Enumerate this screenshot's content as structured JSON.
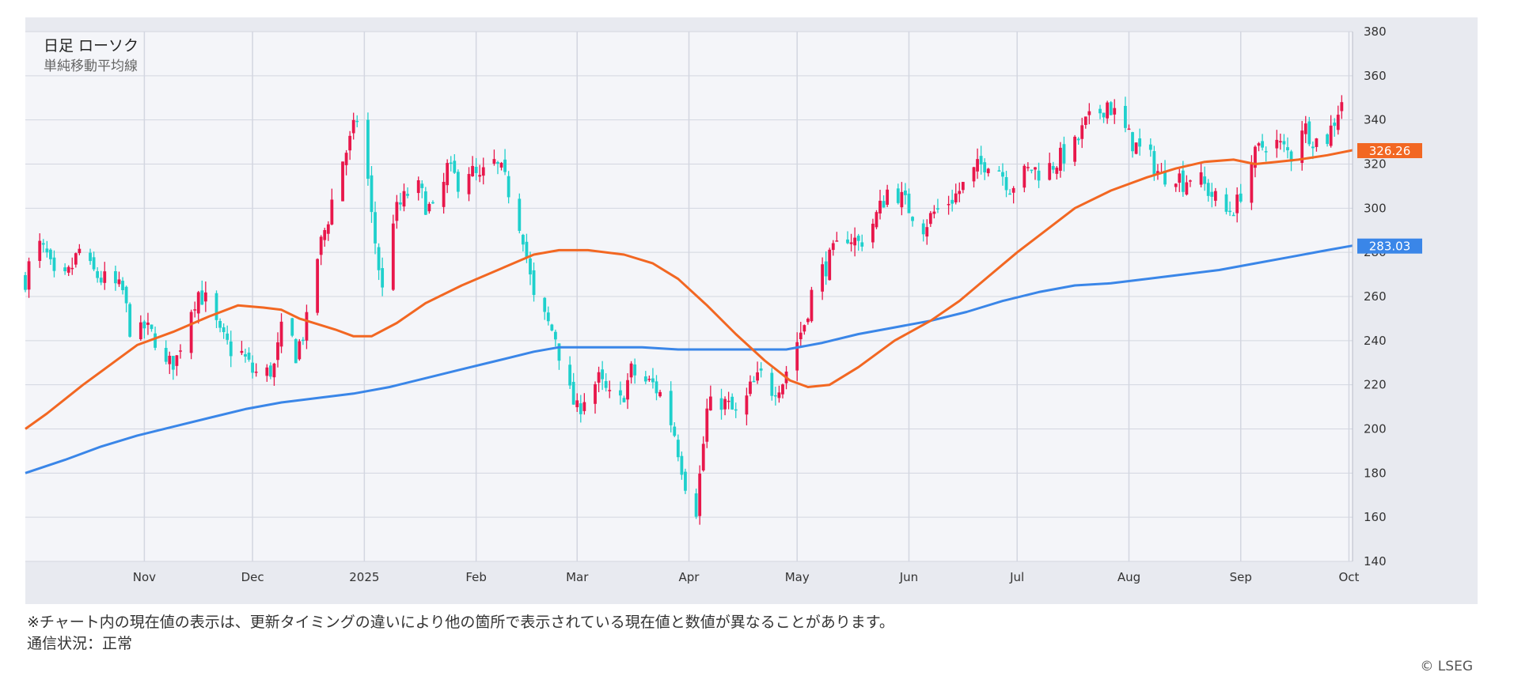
{
  "legend": {
    "title": "日足 ローソク",
    "subtitle": "単純移動平均線"
  },
  "footer": {
    "note": "※チャート内の現在値の表示は、更新タイミングの違いにより他の箇所で表示されている現在値と数値が異なることがあります。",
    "status": "通信状況：正常",
    "copyright": "© LSEG"
  },
  "colors": {
    "up": "#e8174b",
    "down": "#1fd0cc",
    "ma_short": "#f26722",
    "ma_long": "#3a86e8",
    "plot_bg": "#f4f5f9",
    "frame_bg": "#e8eaf0",
    "grid": "#d3d6e0"
  },
  "chart_data": {
    "type": "candlestick",
    "ylim": [
      140,
      380
    ],
    "yticks": [
      "140",
      "160",
      "180",
      "200",
      "220",
      "240",
      "260",
      "280",
      "300",
      "320",
      "340",
      "360",
      "380"
    ],
    "xticks": [
      {
        "label": "Nov",
        "day": 22
      },
      {
        "label": "Dec",
        "day": 52
      },
      {
        "label": "2025",
        "day": 83
      },
      {
        "label": "Feb",
        "day": 114
      },
      {
        "label": "Mar",
        "day": 142
      },
      {
        "label": "Apr",
        "day": 173
      },
      {
        "label": "May",
        "day": 203
      },
      {
        "label": "Jun",
        "day": 234
      },
      {
        "label": "Jul",
        "day": 264
      },
      {
        "label": "Aug",
        "day": 295
      },
      {
        "label": "Sep",
        "day": 326
      },
      {
        "label": "Oct",
        "day": 356
      }
    ],
    "x_range_days": [
      -11,
      357
    ],
    "price_labels": [
      {
        "series": "ma_short",
        "value": "326.26"
      },
      {
        "series": "ma_long",
        "value": "283.03"
      }
    ],
    "close_anchors": [
      [
        -11,
        268
      ],
      [
        -8,
        285
      ],
      [
        -5,
        278
      ],
      [
        -2,
        262
      ],
      [
        1,
        270
      ],
      [
        4,
        281
      ],
      [
        7,
        272
      ],
      [
        10,
        268
      ],
      [
        13,
        266
      ],
      [
        16,
        262
      ],
      [
        19,
        238
      ],
      [
        22,
        246
      ],
      [
        25,
        241
      ],
      [
        28,
        228
      ],
      [
        31,
        232
      ],
      [
        34,
        252
      ],
      [
        37,
        262
      ],
      [
        40,
        256
      ],
      [
        43,
        242
      ],
      [
        46,
        236
      ],
      [
        49,
        234
      ],
      [
        52,
        226
      ],
      [
        55,
        224
      ],
      [
        58,
        228
      ],
      [
        61,
        252
      ],
      [
        64,
        234
      ],
      [
        67,
        248
      ],
      [
        70,
        278
      ],
      [
        73,
        296
      ],
      [
        76,
        318
      ],
      [
        79,
        330
      ],
      [
        82,
        346
      ],
      [
        85,
        296
      ],
      [
        88,
        262
      ],
      [
        91,
        296
      ],
      [
        94,
        304
      ],
      [
        97,
        312
      ],
      [
        100,
        302
      ],
      [
        103,
        296
      ],
      [
        106,
        318
      ],
      [
        109,
        312
      ],
      [
        112,
        318
      ],
      [
        115,
        312
      ],
      [
        118,
        322
      ],
      [
        121,
        316
      ],
      [
        124,
        304
      ],
      [
        127,
        288
      ],
      [
        130,
        258
      ],
      [
        133,
        250
      ],
      [
        136,
        242
      ],
      [
        139,
        220
      ],
      [
        142,
        208
      ],
      [
        145,
        218
      ],
      [
        148,
        222
      ],
      [
        151,
        214
      ],
      [
        154,
        212
      ],
      [
        157,
        226
      ],
      [
        160,
        222
      ],
      [
        163,
        220
      ],
      [
        166,
        214
      ],
      [
        169,
        198
      ],
      [
        172,
        176
      ],
      [
        175,
        164
      ],
      [
        178,
        208
      ],
      [
        181,
        214
      ],
      [
        184,
        210
      ],
      [
        187,
        204
      ],
      [
        190,
        218
      ],
      [
        193,
        224
      ],
      [
        196,
        218
      ],
      [
        199,
        222
      ],
      [
        202,
        236
      ],
      [
        205,
        248
      ],
      [
        208,
        268
      ],
      [
        211,
        274
      ],
      [
        214,
        282
      ],
      [
        217,
        288
      ],
      [
        220,
        284
      ],
      [
        223,
        290
      ],
      [
        226,
        300
      ],
      [
        229,
        312
      ],
      [
        232,
        304
      ],
      [
        235,
        298
      ],
      [
        238,
        292
      ],
      [
        241,
        298
      ],
      [
        244,
        302
      ],
      [
        247,
        306
      ],
      [
        250,
        312
      ],
      [
        253,
        318
      ],
      [
        256,
        322
      ],
      [
        259,
        318
      ],
      [
        262,
        310
      ],
      [
        265,
        314
      ],
      [
        268,
        318
      ],
      [
        271,
        316
      ],
      [
        274,
        320
      ],
      [
        277,
        324
      ],
      [
        280,
        328
      ],
      [
        283,
        338
      ],
      [
        286,
        342
      ],
      [
        289,
        348
      ],
      [
        292,
        340
      ],
      [
        295,
        332
      ],
      [
        298,
        326
      ],
      [
        301,
        322
      ],
      [
        304,
        314
      ],
      [
        307,
        318
      ],
      [
        310,
        312
      ],
      [
        313,
        316
      ],
      [
        316,
        310
      ],
      [
        319,
        304
      ],
      [
        322,
        298
      ],
      [
        325,
        302
      ],
      [
        328,
        318
      ],
      [
        331,
        326
      ],
      [
        334,
        332
      ],
      [
        337,
        328
      ],
      [
        340,
        324
      ],
      [
        343,
        338
      ],
      [
        346,
        332
      ],
      [
        349,
        328
      ],
      [
        352,
        340
      ],
      [
        355,
        354
      ]
    ],
    "ma_short": [
      [
        -11,
        200
      ],
      [
        -5,
        207
      ],
      [
        5,
        220
      ],
      [
        15,
        232
      ],
      [
        20,
        238
      ],
      [
        30,
        244
      ],
      [
        40,
        251
      ],
      [
        48,
        256
      ],
      [
        55,
        255
      ],
      [
        60,
        254
      ],
      [
        65,
        250
      ],
      [
        75,
        245
      ],
      [
        80,
        242
      ],
      [
        85,
        242
      ],
      [
        92,
        248
      ],
      [
        100,
        257
      ],
      [
        110,
        265
      ],
      [
        120,
        272
      ],
      [
        130,
        279
      ],
      [
        137,
        281
      ],
      [
        145,
        281
      ],
      [
        155,
        279
      ],
      [
        163,
        275
      ],
      [
        170,
        268
      ],
      [
        178,
        256
      ],
      [
        186,
        243
      ],
      [
        194,
        231
      ],
      [
        201,
        222
      ],
      [
        206,
        219
      ],
      [
        212,
        220
      ],
      [
        220,
        228
      ],
      [
        230,
        240
      ],
      [
        240,
        249
      ],
      [
        248,
        258
      ],
      [
        256,
        269
      ],
      [
        264,
        280
      ],
      [
        272,
        290
      ],
      [
        280,
        300
      ],
      [
        290,
        308
      ],
      [
        300,
        314
      ],
      [
        308,
        318
      ],
      [
        316,
        321
      ],
      [
        324,
        322
      ],
      [
        330,
        320
      ],
      [
        336,
        321
      ],
      [
        342,
        322
      ],
      [
        350,
        324
      ],
      [
        357,
        326.26
      ]
    ],
    "ma_long": [
      [
        -11,
        180
      ],
      [
        0,
        186
      ],
      [
        10,
        192
      ],
      [
        20,
        197
      ],
      [
        30,
        201
      ],
      [
        40,
        205
      ],
      [
        50,
        209
      ],
      [
        60,
        212
      ],
      [
        70,
        214
      ],
      [
        80,
        216
      ],
      [
        90,
        219
      ],
      [
        100,
        223
      ],
      [
        110,
        227
      ],
      [
        120,
        231
      ],
      [
        130,
        235
      ],
      [
        137,
        237
      ],
      [
        145,
        237
      ],
      [
        160,
        237
      ],
      [
        170,
        236
      ],
      [
        180,
        236
      ],
      [
        190,
        236
      ],
      [
        200,
        236
      ],
      [
        210,
        239
      ],
      [
        220,
        243
      ],
      [
        230,
        246
      ],
      [
        240,
        249
      ],
      [
        250,
        253
      ],
      [
        260,
        258
      ],
      [
        270,
        262
      ],
      [
        280,
        265
      ],
      [
        290,
        266
      ],
      [
        300,
        268
      ],
      [
        310,
        270
      ],
      [
        320,
        272
      ],
      [
        330,
        275
      ],
      [
        340,
        278
      ],
      [
        350,
        281
      ],
      [
        357,
        283.03
      ]
    ]
  }
}
